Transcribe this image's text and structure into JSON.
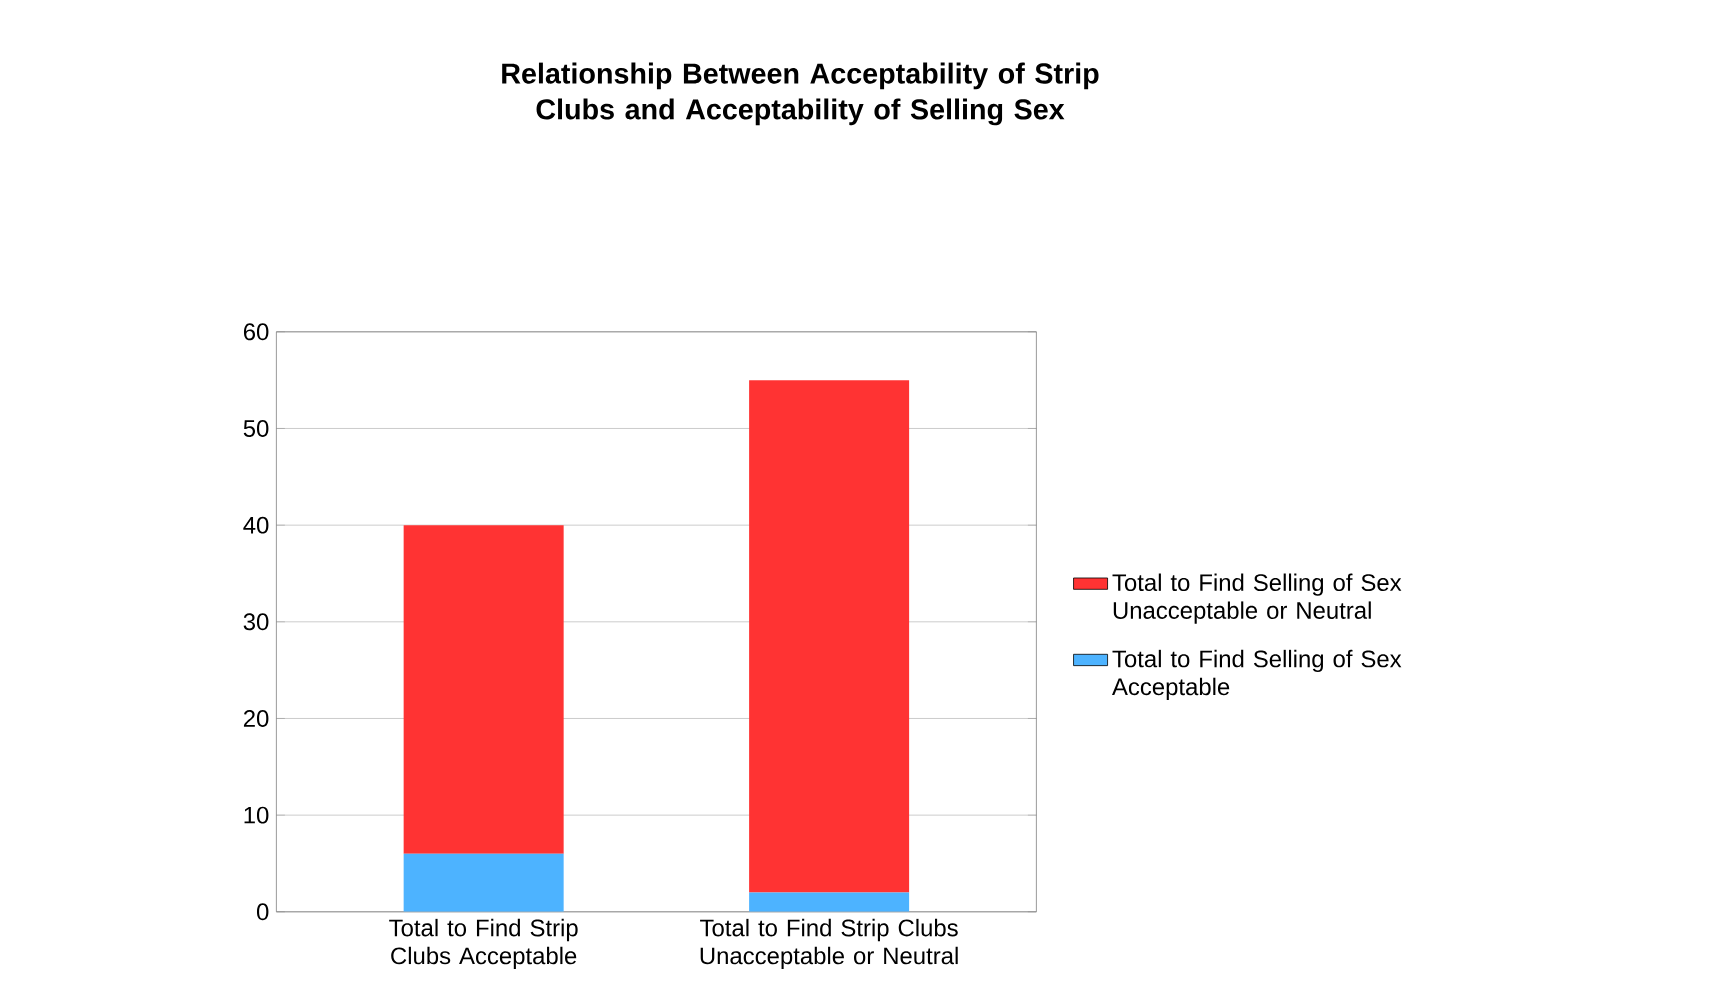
{
  "chart_data": {
    "type": "bar",
    "title": "Relationship Between Acceptability of Strip Clubs and Acceptability of Selling Sex",
    "categories": [
      "Total to Find Strip Clubs Acceptable",
      "Total to Find Strip Clubs Unacceptable or Neutral"
    ],
    "series": [
      {
        "name": "Total to Find Selling of Sex Acceptable",
        "color": "#4db3ff",
        "values": [
          6,
          2
        ]
      },
      {
        "name": "Total to Find Selling of Sex Unacceptable or Neutral",
        "color": "#ff3333",
        "values": [
          34,
          53
        ]
      }
    ],
    "stacked": true,
    "ylim": [
      0,
      60
    ],
    "yticks": [
      0,
      10,
      20,
      30,
      40,
      50,
      60
    ],
    "grid": "y",
    "legend": "right"
  }
}
